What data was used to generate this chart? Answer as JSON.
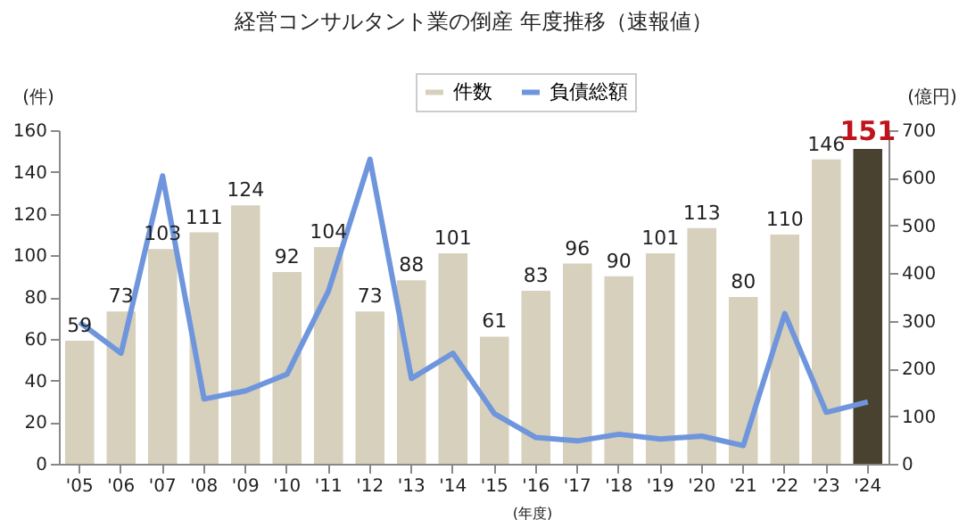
{
  "chart_data": {
    "type": "bar",
    "title": "経営コンサルタント業の倒産 年度推移（速報値）",
    "xlabel": "(年度)",
    "ylabel": "(件)",
    "y2label": "(億円)",
    "categories": [
      "'05",
      "'06",
      "'07",
      "'08",
      "'09",
      "'10",
      "'11",
      "'12",
      "'13",
      "'14",
      "'15",
      "'16",
      "'17",
      "'18",
      "'19",
      "'20",
      "'21",
      "'22",
      "'23",
      "'24"
    ],
    "series": [
      {
        "name": "件数",
        "colors": [
          "#d6d0bc",
          "#d6d0bc",
          "#d6d0bc",
          "#d6d0bc",
          "#d6d0bc",
          "#d6d0bc",
          "#d6d0bc",
          "#d6d0bc",
          "#d6d0bc",
          "#d6d0bc",
          "#d6d0bc",
          "#d6d0bc",
          "#d6d0bc",
          "#d6d0bc",
          "#d6d0bc",
          "#d6d0bc",
          "#d6d0bc",
          "#d6d0bc",
          "#d6d0bc",
          "#4a4230"
        ],
        "values": [
          59,
          73,
          103,
          111,
          124,
          92,
          104,
          73,
          88,
          101,
          61,
          83,
          96,
          90,
          101,
          113,
          80,
          110,
          146,
          151
        ],
        "value_labels": [
          "59",
          "73",
          "103",
          "111",
          "124",
          "92",
          "104",
          "73",
          "88",
          "101",
          "61",
          "83",
          "96",
          "90",
          "101",
          "113",
          "80",
          "110",
          "146",
          null
        ]
      },
      {
        "name": "負債総額",
        "type": "line",
        "axis": "y2",
        "color": "#6f96dc",
        "values": [
          297,
          232,
          604,
          136,
          153,
          188,
          363,
          639,
          179,
          232,
          105,
          55,
          48,
          62,
          52,
          58,
          38,
          315,
          108,
          130
        ]
      }
    ],
    "annotations": [
      {
        "text": "151",
        "x": "'24",
        "y": 151
      }
    ],
    "ylim": [
      0,
      160
    ],
    "yticks": [
      0,
      20,
      40,
      60,
      80,
      100,
      120,
      140,
      160
    ],
    "y2lim": [
      0,
      700
    ],
    "y2ticks": [
      0,
      100,
      200,
      300,
      400,
      500,
      600,
      700
    ],
    "legend": "top right",
    "grid": false
  }
}
